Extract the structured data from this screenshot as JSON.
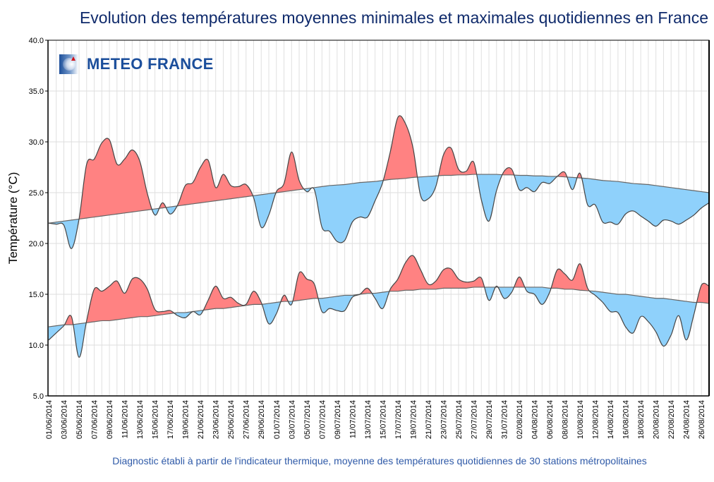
{
  "title": "Evolution des températures moyennes minimales et maximales quotidiennes en France",
  "footer": "Diagnostic établi à partir de l'indicateur thermique, moyenne des températures quotidiennes de 30 stations métropolitaines",
  "logo_text": "METEO FRANCE",
  "colors": {
    "above_normal": "#ff8282",
    "below_normal": "#8fd1fb",
    "line": "#444444",
    "title": "#0f2a6b",
    "footer": "#2f5aa8"
  },
  "chart_data": {
    "type": "area",
    "title": "Evolution des températures moyennes minimales et maximales quotidiennes en France",
    "ylabel": "Température (°C)",
    "xlabel": "",
    "ylim": [
      5,
      40
    ],
    "yticks": [
      "5.0",
      "10.0",
      "15.0",
      "20.0",
      "25.0",
      "30.0",
      "35.0",
      "40.0"
    ],
    "grid": true,
    "x_start": "01/06/2014",
    "x_end": "27/08/2014",
    "xtick_labels": [
      "01/06/2014",
      "03/06/2014",
      "05/06/2014",
      "07/06/2014",
      "09/06/2014",
      "11/06/2014",
      "13/06/2014",
      "15/06/2014",
      "17/06/2014",
      "19/06/2014",
      "21/06/2014",
      "23/06/2014",
      "25/06/2014",
      "27/06/2014",
      "29/06/2014",
      "01/07/2014",
      "03/07/2014",
      "05/07/2014",
      "07/07/2014",
      "09/07/2014",
      "11/07/2014",
      "13/07/2014",
      "15/07/2014",
      "17/07/2014",
      "19/07/2014",
      "21/07/2014",
      "23/07/2014",
      "25/07/2014",
      "27/07/2014",
      "29/07/2014",
      "31/07/2014",
      "02/08/2014",
      "04/08/2014",
      "06/08/2014",
      "08/08/2014",
      "10/08/2014",
      "12/08/2014",
      "14/08/2014",
      "16/08/2014",
      "18/08/2014",
      "20/08/2014",
      "22/08/2014",
      "24/08/2014",
      "26/08/2014"
    ],
    "series": [
      {
        "values": [
          22.0,
          21.9,
          21.8,
          19.5,
          22.4,
          27.8,
          28.3,
          29.9,
          30.2,
          27.8,
          28.3,
          29.2,
          28.1,
          24.9,
          22.8,
          24.0,
          22.9,
          23.8,
          25.7,
          26.0,
          27.5,
          28.2,
          25.5,
          26.8,
          25.7,
          25.6,
          25.8,
          24.5,
          21.6,
          22.8,
          25.1,
          25.9,
          29.0,
          26.2,
          25.1,
          25.3,
          21.6,
          21.2,
          20.2,
          20.3,
          22.1,
          22.6,
          22.6,
          24.2,
          26.0,
          29.0,
          32.4,
          31.8,
          29.4,
          24.7,
          24.4,
          25.6,
          28.7,
          29.4,
          27.3,
          27.1,
          28.0,
          24.3,
          22.2,
          25.2,
          27.1,
          27.3,
          25.3,
          25.5,
          25.1,
          26.0,
          25.9,
          26.6,
          27.0,
          25.3,
          26.9,
          23.8,
          23.8,
          22.1,
          22.1,
          21.9,
          22.9,
          23.2,
          22.7,
          22.2,
          21.7,
          22.3,
          22.2,
          21.9,
          22.3,
          22.8,
          23.5,
          24.0
        ],
        "normal": [
          22.0,
          22.1,
          22.2,
          22.3,
          22.4,
          22.5,
          22.6,
          22.7,
          22.8,
          22.9,
          23.0,
          23.1,
          23.2,
          23.3,
          23.4,
          23.5,
          23.6,
          23.7,
          23.8,
          23.9,
          24.0,
          24.1,
          24.2,
          24.3,
          24.4,
          24.5,
          24.6,
          24.7,
          24.8,
          24.9,
          25.0,
          25.1,
          25.2,
          25.3,
          25.4,
          25.5,
          25.6,
          25.7,
          25.75,
          25.8,
          25.9,
          26.0,
          26.05,
          26.1,
          26.2,
          26.3,
          26.35,
          26.4,
          26.5,
          26.55,
          26.6,
          26.65,
          26.7,
          26.7,
          26.75,
          26.75,
          26.8,
          26.8,
          26.8,
          26.8,
          26.75,
          26.75,
          26.7,
          26.7,
          26.65,
          26.65,
          26.6,
          26.6,
          26.55,
          26.5,
          26.45,
          26.4,
          26.3,
          26.2,
          26.15,
          26.1,
          26.0,
          25.9,
          25.85,
          25.8,
          25.7,
          25.6,
          25.5,
          25.4,
          25.3,
          25.2,
          25.1,
          25.0
        ]
      },
      {
        "values": [
          10.5,
          11.2,
          11.9,
          12.8,
          8.8,
          12.4,
          15.5,
          15.3,
          15.8,
          16.3,
          15.1,
          16.5,
          16.5,
          15.5,
          13.5,
          13.3,
          13.4,
          12.9,
          12.7,
          13.3,
          13.0,
          14.4,
          15.8,
          14.6,
          14.7,
          14.1,
          14.0,
          15.3,
          14.2,
          12.1,
          13.1,
          14.9,
          14.0,
          17.1,
          16.5,
          16.0,
          13.3,
          13.6,
          13.4,
          13.4,
          14.7,
          15.0,
          15.6,
          14.6,
          13.6,
          15.5,
          16.5,
          18.1,
          18.8,
          17.4,
          16.0,
          16.3,
          17.4,
          17.5,
          16.5,
          16.2,
          16.3,
          16.6,
          14.4,
          15.8,
          14.6,
          15.2,
          16.7,
          15.3,
          15.0,
          14.0,
          15.2,
          17.4,
          17.0,
          16.4,
          18.0,
          15.6,
          14.9,
          14.2,
          13.3,
          13.2,
          11.8,
          11.2,
          12.8,
          12.3,
          11.3,
          9.9,
          11.0,
          12.9,
          10.5,
          13.0,
          15.9,
          15.8
        ],
        "normal": [
          11.8,
          11.9,
          12.0,
          12.0,
          12.1,
          12.2,
          12.3,
          12.4,
          12.4,
          12.5,
          12.6,
          12.7,
          12.8,
          12.8,
          12.9,
          13.0,
          13.1,
          13.2,
          13.2,
          13.3,
          13.4,
          13.5,
          13.6,
          13.6,
          13.7,
          13.8,
          13.9,
          14.0,
          14.0,
          14.1,
          14.2,
          14.3,
          14.3,
          14.4,
          14.5,
          14.6,
          14.6,
          14.7,
          14.8,
          14.9,
          14.9,
          15.0,
          15.1,
          15.1,
          15.2,
          15.3,
          15.3,
          15.4,
          15.4,
          15.5,
          15.5,
          15.5,
          15.6,
          15.6,
          15.6,
          15.6,
          15.7,
          15.7,
          15.7,
          15.7,
          15.7,
          15.7,
          15.7,
          15.7,
          15.7,
          15.7,
          15.6,
          15.6,
          15.5,
          15.5,
          15.4,
          15.35,
          15.3,
          15.2,
          15.1,
          15.0,
          15.0,
          14.9,
          14.8,
          14.7,
          14.6,
          14.6,
          14.5,
          14.4,
          14.3,
          14.2,
          14.2,
          14.1
        ]
      }
    ]
  }
}
